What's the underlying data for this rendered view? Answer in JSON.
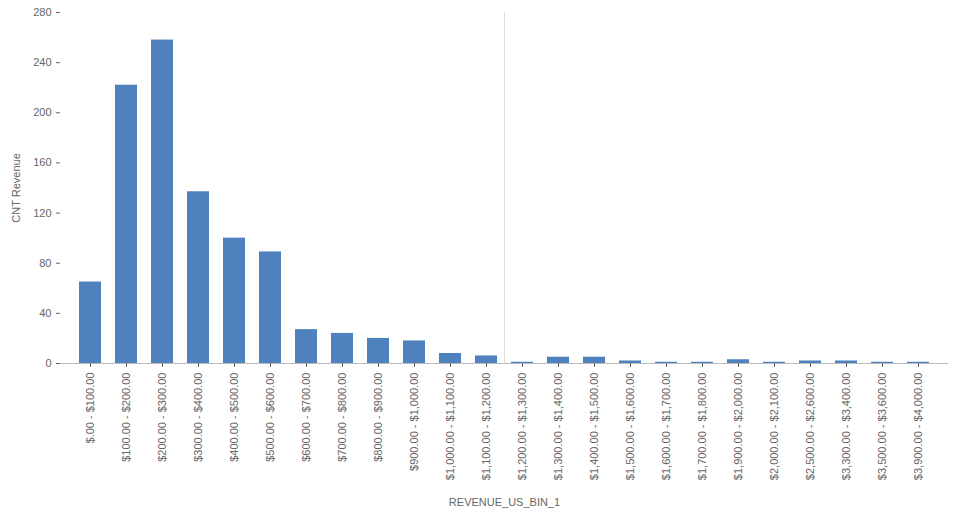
{
  "chart_data": {
    "type": "bar",
    "x_label": "REVENUE_US_BIN_1",
    "y_label": "CNT Revenue",
    "categories": [
      "$.00 - $100.00",
      "$100.00 - $200.00",
      "$200.00 - $300.00",
      "$300.00 - $400.00",
      "$400.00 - $500.00",
      "$500.00 - $600.00",
      "$600.00 - $700.00",
      "$700.00 - $800.00",
      "$800.00 - $900.00",
      "$900.00 - $1,000.00",
      "$1,000.00 - $1,100.00",
      "$1,100.00 - $1,200.00",
      "$1,200.00 - $1,300.00",
      "$1,300.00 - $1,400.00",
      "$1,400.00 - $1,500.00",
      "$1,500.00 - $1,600.00",
      "$1,600.00 - $1,700.00",
      "$1,700.00 - $1,800.00",
      "$1,900.00 - $2,000.00",
      "$2,000.00 - $2,100.00",
      "$2,500.00 - $2,600.00",
      "$3,300.00 - $3,400.00",
      "$3,500.00 - $3,600.00",
      "$3,900.00 - $4,000.00"
    ],
    "values": [
      65,
      222,
      258,
      137,
      100,
      89,
      27,
      24,
      20,
      18,
      8,
      6,
      1,
      5,
      5,
      2,
      1,
      1,
      3,
      1,
      2,
      2,
      1,
      1
    ],
    "color": "#4e81bd",
    "ylim": [
      0,
      280
    ],
    "yticks": [
      0,
      40,
      80,
      120,
      160,
      200,
      240,
      280
    ],
    "grid": false
  }
}
